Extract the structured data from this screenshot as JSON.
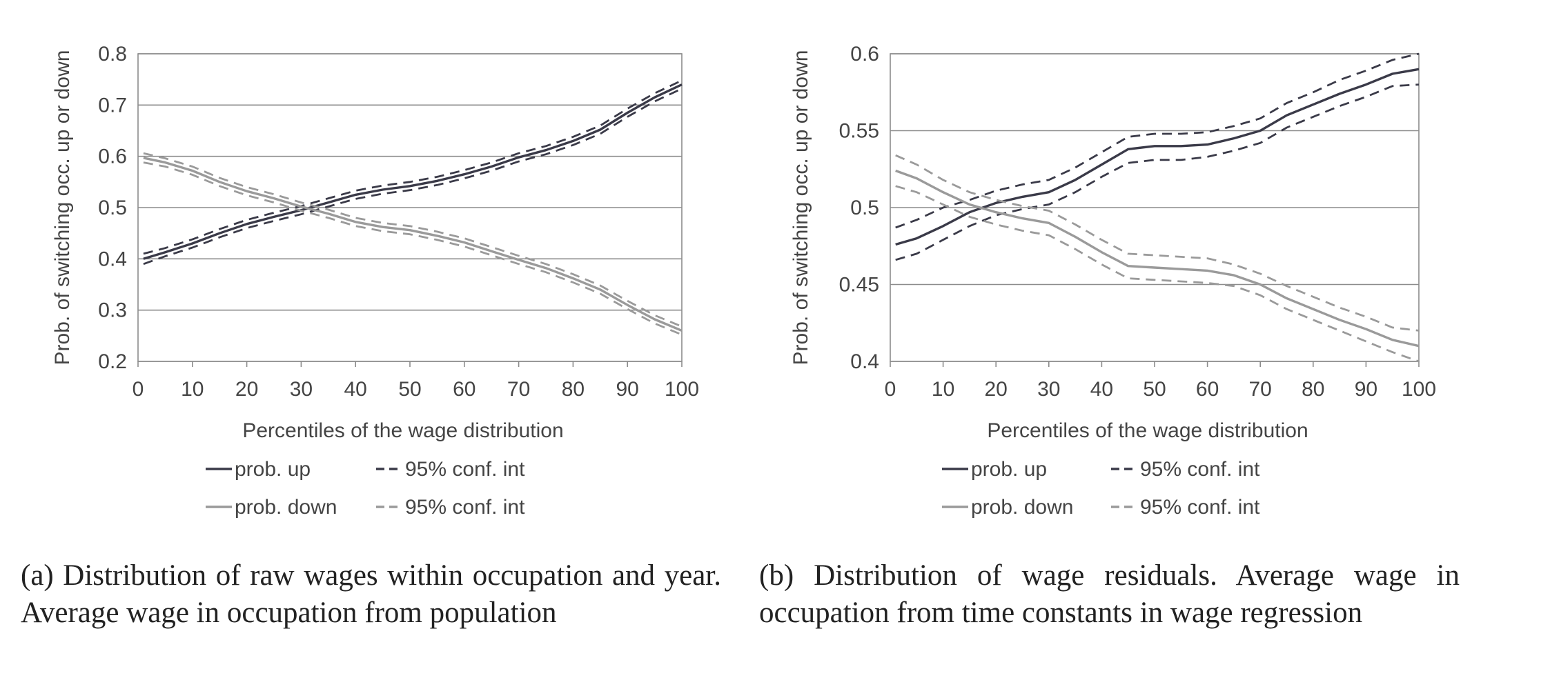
{
  "chart_data": [
    {
      "type": "line",
      "xlabel": "Percentiles of the wage distribution",
      "ylabel": "Prob. of switching occ. up or down",
      "xlim": [
        0,
        100
      ],
      "ylim": [
        0.2,
        0.8
      ],
      "xticks": [
        0,
        10,
        20,
        30,
        40,
        50,
        60,
        70,
        80,
        90,
        100
      ],
      "yticks": [
        0.2,
        0.3,
        0.4,
        0.5,
        0.6,
        0.7,
        0.8
      ],
      "ytick_labels": [
        "0.2",
        "0.3",
        "0.4",
        "0.5",
        "0.6",
        "0.7",
        "0.8"
      ],
      "grid": "horizontal",
      "legend_position": "bottom",
      "x": [
        1,
        5,
        10,
        15,
        20,
        25,
        30,
        35,
        40,
        45,
        50,
        55,
        60,
        65,
        70,
        75,
        80,
        85,
        90,
        95,
        100
      ],
      "series": [
        {
          "name": "prob. up",
          "color": "#3a3a48",
          "style": "solid",
          "role": "up",
          "values": [
            0.4,
            0.413,
            0.43,
            0.45,
            0.468,
            0.482,
            0.495,
            0.51,
            0.525,
            0.535,
            0.542,
            0.552,
            0.565,
            0.58,
            0.598,
            0.612,
            0.63,
            0.652,
            0.685,
            0.715,
            0.74
          ]
        },
        {
          "name": "95% conf. int",
          "color": "#3a3a48",
          "style": "dashed",
          "role": "up",
          "values": [
            0.41,
            0.421,
            0.438,
            0.458,
            0.476,
            0.49,
            0.503,
            0.518,
            0.533,
            0.543,
            0.55,
            0.56,
            0.573,
            0.588,
            0.606,
            0.62,
            0.638,
            0.66,
            0.693,
            0.723,
            0.748
          ]
        },
        {
          "name": "",
          "color": "#3a3a48",
          "style": "dashed",
          "role": "up",
          "values": [
            0.39,
            0.405,
            0.422,
            0.442,
            0.46,
            0.474,
            0.487,
            0.502,
            0.517,
            0.527,
            0.534,
            0.544,
            0.557,
            0.572,
            0.59,
            0.604,
            0.622,
            0.644,
            0.677,
            0.707,
            0.732
          ]
        },
        {
          "name": "prob. down",
          "color": "#9a9a9a",
          "style": "solid",
          "role": "down",
          "values": [
            0.597,
            0.588,
            0.572,
            0.55,
            0.532,
            0.518,
            0.502,
            0.488,
            0.472,
            0.462,
            0.456,
            0.445,
            0.432,
            0.415,
            0.398,
            0.382,
            0.362,
            0.34,
            0.31,
            0.282,
            0.26
          ]
        },
        {
          "name": "95% conf. int",
          "color": "#9a9a9a",
          "style": "dashed",
          "role": "down",
          "values": [
            0.606,
            0.596,
            0.58,
            0.558,
            0.54,
            0.526,
            0.51,
            0.496,
            0.48,
            0.47,
            0.464,
            0.453,
            0.44,
            0.423,
            0.406,
            0.39,
            0.37,
            0.348,
            0.318,
            0.29,
            0.268
          ]
        },
        {
          "name": "",
          "color": "#9a9a9a",
          "style": "dashed",
          "role": "down",
          "values": [
            0.588,
            0.58,
            0.564,
            0.542,
            0.524,
            0.51,
            0.494,
            0.48,
            0.464,
            0.454,
            0.448,
            0.437,
            0.424,
            0.407,
            0.39,
            0.374,
            0.354,
            0.332,
            0.302,
            0.274,
            0.252
          ]
        }
      ]
    },
    {
      "type": "line",
      "xlabel": "Percentiles of the wage distribution",
      "ylabel": "Prob. of switching occ. up or down",
      "xlim": [
        0,
        100
      ],
      "ylim": [
        0.4,
        0.6
      ],
      "xticks": [
        0,
        10,
        20,
        30,
        40,
        50,
        60,
        70,
        80,
        90,
        100
      ],
      "yticks": [
        0.4,
        0.45,
        0.5,
        0.55,
        0.6
      ],
      "ytick_labels": [
        "0.4",
        "0.45",
        "0.5",
        "0.55",
        "0.6"
      ],
      "grid": "horizontal",
      "legend_position": "bottom",
      "x": [
        1,
        5,
        10,
        15,
        20,
        25,
        30,
        35,
        40,
        45,
        50,
        55,
        60,
        65,
        70,
        75,
        80,
        85,
        90,
        95,
        100
      ],
      "series": [
        {
          "name": "prob. up",
          "color": "#3a3a48",
          "style": "solid",
          "role": "up",
          "values": [
            0.476,
            0.48,
            0.488,
            0.497,
            0.503,
            0.507,
            0.51,
            0.518,
            0.528,
            0.538,
            0.54,
            0.54,
            0.541,
            0.545,
            0.55,
            0.56,
            0.567,
            0.574,
            0.58,
            0.587,
            0.59
          ]
        },
        {
          "name": "95% conf. int",
          "color": "#3a3a48",
          "style": "dashed",
          "role": "up",
          "values": [
            0.487,
            0.492,
            0.5,
            0.505,
            0.511,
            0.515,
            0.518,
            0.526,
            0.536,
            0.546,
            0.548,
            0.548,
            0.549,
            0.553,
            0.558,
            0.568,
            0.575,
            0.583,
            0.589,
            0.596,
            0.6
          ]
        },
        {
          "name": "",
          "color": "#3a3a48",
          "style": "dashed",
          "role": "up",
          "values": [
            0.466,
            0.47,
            0.479,
            0.488,
            0.495,
            0.499,
            0.502,
            0.51,
            0.52,
            0.529,
            0.531,
            0.531,
            0.533,
            0.537,
            0.542,
            0.552,
            0.559,
            0.566,
            0.572,
            0.579,
            0.58
          ]
        },
        {
          "name": "prob. down",
          "color": "#9a9a9a",
          "style": "solid",
          "role": "down",
          "values": [
            0.524,
            0.519,
            0.51,
            0.502,
            0.497,
            0.493,
            0.49,
            0.481,
            0.471,
            0.462,
            0.461,
            0.46,
            0.459,
            0.456,
            0.45,
            0.441,
            0.434,
            0.427,
            0.421,
            0.414,
            0.41
          ]
        },
        {
          "name": "95% conf. int",
          "color": "#9a9a9a",
          "style": "dashed",
          "role": "down",
          "values": [
            0.534,
            0.528,
            0.518,
            0.51,
            0.505,
            0.501,
            0.498,
            0.489,
            0.479,
            0.47,
            0.469,
            0.468,
            0.467,
            0.463,
            0.457,
            0.449,
            0.442,
            0.435,
            0.429,
            0.422,
            0.42
          ]
        },
        {
          "name": "",
          "color": "#9a9a9a",
          "style": "dashed",
          "role": "down",
          "values": [
            0.514,
            0.51,
            0.502,
            0.494,
            0.489,
            0.485,
            0.482,
            0.473,
            0.463,
            0.454,
            0.453,
            0.452,
            0.451,
            0.449,
            0.443,
            0.434,
            0.427,
            0.42,
            0.413,
            0.406,
            0.4
          ]
        }
      ]
    }
  ],
  "captions": {
    "a": "(a) Distribution of raw wages within occupation and year. Average wage in occupation from population",
    "b": "(b) Distribution of wage residuals. Average wage in occupation from time constants in wage regression"
  }
}
